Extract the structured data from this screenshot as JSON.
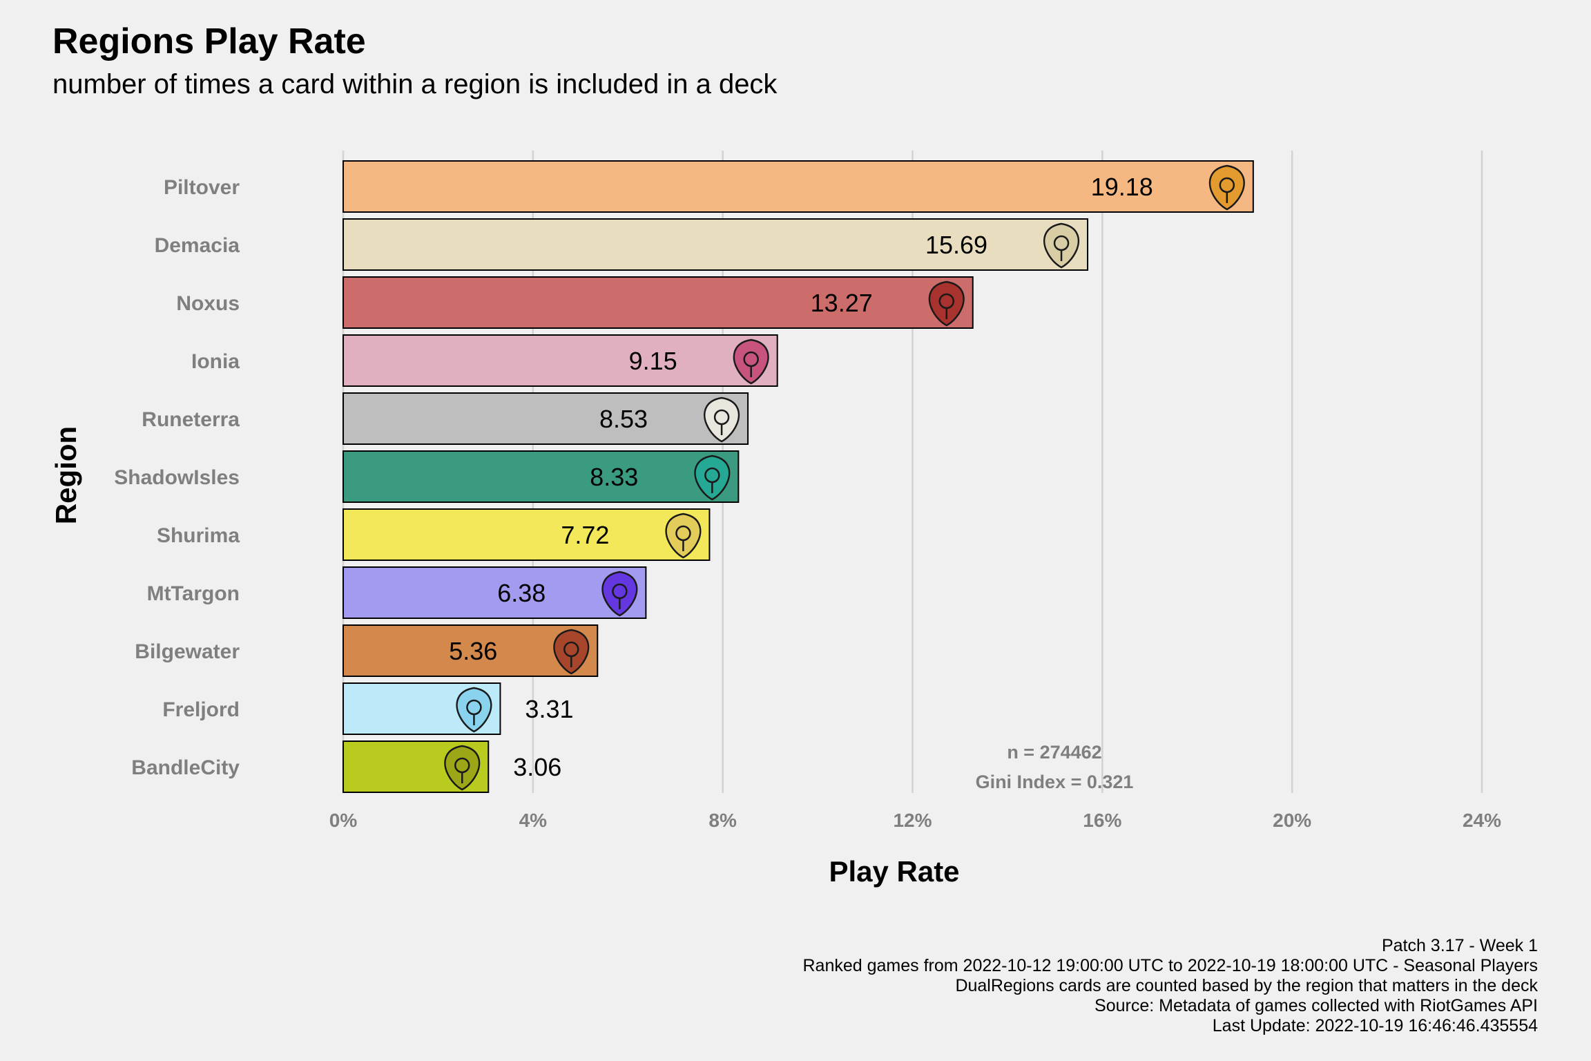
{
  "chart_data": {
    "type": "bar",
    "orientation": "horizontal",
    "title": "Regions Play Rate",
    "subtitle": "number of times a card within a region is included in a deck",
    "xlabel": "Play Rate",
    "ylabel": "Region",
    "xlim": [
      0,
      24
    ],
    "x_ticks": [
      "0%",
      "4%",
      "8%",
      "12%",
      "16%",
      "20%",
      "24%"
    ],
    "grid": "vertical major gridlines",
    "categories": [
      "Piltover",
      "Demacia",
      "Noxus",
      "Ionia",
      "Runeterra",
      "ShadowIsles",
      "Shurima",
      "MtTargon",
      "Bilgewater",
      "Freljord",
      "BandleCity"
    ],
    "values": [
      19.18,
      15.69,
      13.27,
      9.15,
      8.53,
      8.33,
      7.72,
      6.38,
      5.36,
      3.31,
      3.06
    ],
    "value_labels": [
      "19.18",
      "15.69",
      "13.27",
      "9.15",
      "8.53",
      "8.33",
      "7.72",
      "6.38",
      "5.36",
      "3.31",
      "3.06"
    ],
    "colors": [
      "#F6B882",
      "#E8DDBF",
      "#CD6D6B",
      "#E0AFC0",
      "#BEBEBE",
      "#3A9B80",
      "#F3E85A",
      "#A29BEF",
      "#D2894B",
      "#BCEAF8",
      "#B8CB1E"
    ],
    "icon_colors": [
      "#E39A2E",
      "#D9CDA6",
      "#A8322E",
      "#C7537E",
      "#E9E6DE",
      "#25A894",
      "#E4CC5A",
      "#6437E0",
      "#A8462C",
      "#8AD3EE",
      "#9BA716"
    ],
    "icons": [
      "piltover-icon",
      "demacia-icon",
      "noxus-icon",
      "ionia-icon",
      "runeterra-icon",
      "shadow-isles-icon",
      "shurima-icon",
      "mt-targon-icon",
      "bilgewater-icon",
      "freljord-icon",
      "bandle-city-icon"
    ],
    "annotations": [
      "n = 274462",
      "Gini Index = 0.321"
    ],
    "caption": [
      "Patch 3.17 - Week 1",
      "Ranked games from 2022-10-12 19:00:00 UTC to 2022-10-19 18:00:00 UTC - Seasonal Players",
      "DualRegions cards are counted based by the region that matters in the deck",
      "Source: Metadata of games collected with RiotGames API",
      "Last Update: 2022-10-19 16:46:46.435554"
    ]
  }
}
